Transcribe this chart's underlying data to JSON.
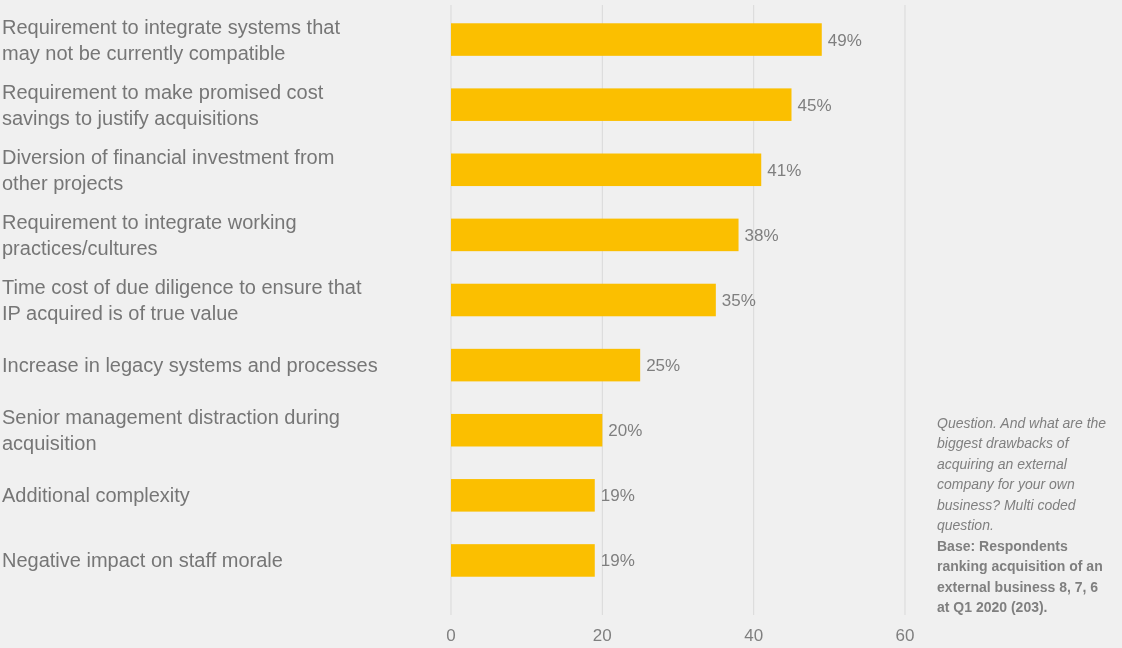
{
  "chart_data": {
    "type": "bar",
    "orientation": "horizontal",
    "categories": [
      "Requirement to integrate systems that may not be currently compatible",
      "Requirement to make promised cost savings to justify acquisitions",
      "Diversion of financial investment from other projects",
      "Requirement to integrate working practices/cultures",
      "Time cost of due diligence to ensure that IP acquired is of true value",
      "Increase in legacy systems and processes",
      "Senior management distraction during acquisition",
      "Additional complexity",
      "Negative impact on staff morale"
    ],
    "values": [
      49,
      45,
      41,
      38,
      35,
      25,
      20,
      19,
      19
    ],
    "value_labels": [
      "49%",
      "45%",
      "41%",
      "38%",
      "35%",
      "25%",
      "20%",
      "19%",
      "19%"
    ],
    "color": "#fbbf00",
    "xlim": [
      0,
      60
    ],
    "xticks": [
      0,
      20,
      40,
      60
    ],
    "grid": "x",
    "annotations": [
      "Question. And what are the biggest drawbacks of acquiring an external company for your own business? Multi coded question.",
      "Base: Respondents ranking acquisition of an external business 8, 7, 6 at Q1 2020 (203)."
    ]
  }
}
